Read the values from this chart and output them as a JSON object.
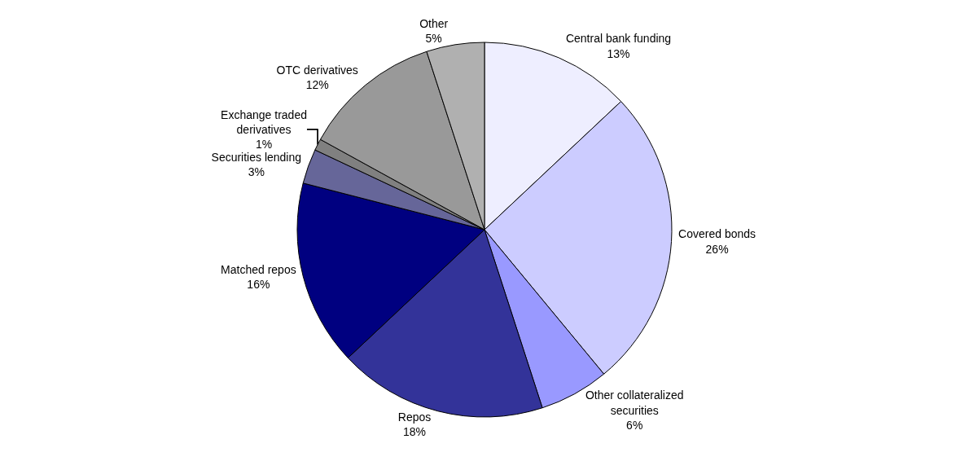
{
  "chart_data": {
    "type": "pie",
    "categories": [
      "Central bank funding",
      "Covered bonds",
      "Other collateralized securities",
      "Repos",
      "Matched repos",
      "Securities lending",
      "Exchange traded derivatives",
      "OTC derivatives",
      "Other"
    ],
    "values": [
      13,
      26,
      6,
      18,
      16,
      3,
      1,
      12,
      5
    ],
    "value_labels": [
      "13%",
      "26%",
      "6%",
      "18%",
      "16%",
      "3%",
      "1%",
      "12%",
      "5%"
    ],
    "colors": [
      "#eeeeff",
      "#ccccff",
      "#9999ff",
      "#333399",
      "#000080",
      "#666699",
      "#808080",
      "#999999",
      "#b0b0b0"
    ],
    "legend": false
  }
}
